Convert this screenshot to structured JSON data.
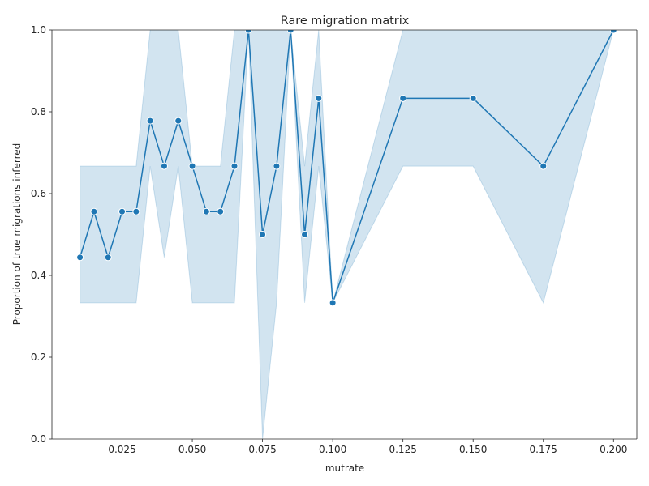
{
  "chart_data": {
    "type": "line",
    "title": "Rare migration matrix",
    "xlabel": "mutrate",
    "ylabel": "Proportion of true migrations inferred",
    "xlim": [
      0.0,
      0.2083
    ],
    "ylim": [
      0.0,
      1.0
    ],
    "x_ticks": [
      0.025,
      0.05,
      0.075,
      0.1,
      0.125,
      0.15,
      0.175,
      0.2
    ],
    "x_tick_labels": [
      "0.025",
      "0.050",
      "0.075",
      "0.100",
      "0.125",
      "0.150",
      "0.175",
      "0.200"
    ],
    "y_ticks": [
      0.0,
      0.2,
      0.4,
      0.6,
      0.8,
      1.0
    ],
    "y_tick_labels": [
      "0.0",
      "0.2",
      "0.4",
      "0.6",
      "0.8",
      "1.0"
    ],
    "grid": false,
    "line_color": "#1f77b4",
    "band_color": "#1f77b4",
    "series": [
      {
        "marker": "circle",
        "x": [
          0.01,
          0.015,
          0.02,
          0.025,
          0.03,
          0.035,
          0.04,
          0.045,
          0.05,
          0.055,
          0.06,
          0.065,
          0.07,
          0.075,
          0.08,
          0.085,
          0.09,
          0.095,
          0.1,
          0.125,
          0.15,
          0.175,
          0.2
        ],
        "y": [
          0.444,
          0.556,
          0.444,
          0.556,
          0.556,
          0.778,
          0.667,
          0.778,
          0.667,
          0.556,
          0.556,
          0.667,
          1.0,
          0.5,
          0.667,
          1.0,
          0.5,
          0.833,
          0.333,
          0.833,
          0.833,
          0.667,
          1.0
        ],
        "ci_lower": [
          0.333,
          0.333,
          0.333,
          0.333,
          0.333,
          0.667,
          0.444,
          0.667,
          0.333,
          0.333,
          0.333,
          0.333,
          1.0,
          0.0,
          0.333,
          1.0,
          0.333,
          0.667,
          0.333,
          0.667,
          0.667,
          0.333,
          1.0
        ],
        "ci_upper": [
          0.667,
          0.667,
          0.667,
          0.667,
          0.667,
          1.0,
          1.0,
          1.0,
          0.667,
          0.667,
          0.667,
          1.0,
          1.0,
          1.0,
          1.0,
          1.0,
          0.667,
          1.0,
          0.333,
          1.0,
          1.0,
          1.0,
          1.0
        ]
      }
    ]
  }
}
